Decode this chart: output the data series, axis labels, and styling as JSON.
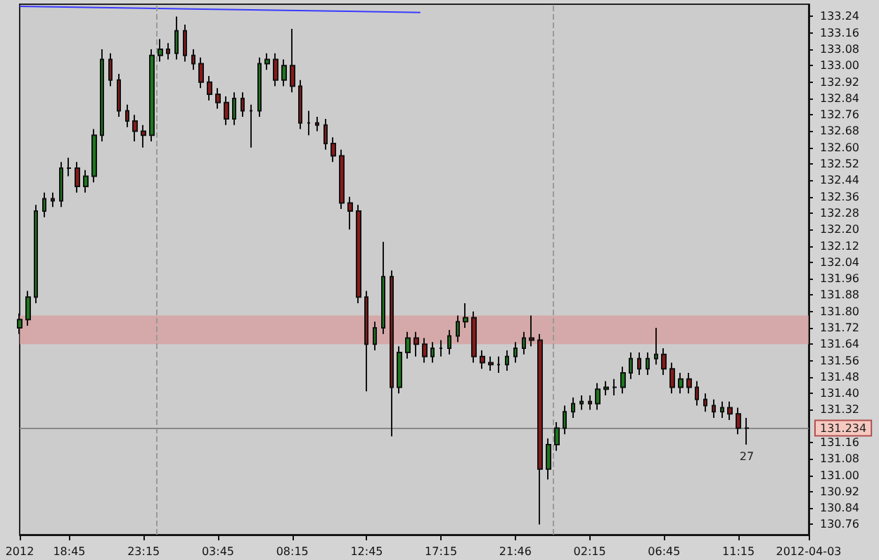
{
  "chart_data": {
    "type": "candlestick",
    "x": [
      "2012-04-01T15:45",
      "2012-04-01T16:15",
      "2012-04-01T16:45",
      "2012-04-01T17:15",
      "2012-04-01T17:45",
      "2012-04-01T18:15",
      "2012-04-01T18:45",
      "2012-04-01T19:15",
      "2012-04-01T19:45",
      "2012-04-01T20:15",
      "2012-04-01T20:45",
      "2012-04-01T21:15",
      "2012-04-01T21:45",
      "2012-04-01T22:15",
      "2012-04-01T22:45",
      "2012-04-01T23:15",
      "2012-04-01T23:45",
      "2012-04-02T00:15",
      "2012-04-02T00:45",
      "2012-04-02T01:15",
      "2012-04-02T01:45",
      "2012-04-02T02:15",
      "2012-04-02T02:45",
      "2012-04-02T03:15",
      "2012-04-02T03:45",
      "2012-04-02T04:15",
      "2012-04-02T04:45",
      "2012-04-02T05:15",
      "2012-04-02T05:45",
      "2012-04-02T06:15",
      "2012-04-02T06:45",
      "2012-04-02T07:15",
      "2012-04-02T07:45",
      "2012-04-02T08:15",
      "2012-04-02T08:45",
      "2012-04-02T09:15",
      "2012-04-02T09:45",
      "2012-04-02T10:15",
      "2012-04-02T10:45",
      "2012-04-02T11:15",
      "2012-04-02T11:45",
      "2012-04-02T12:15",
      "2012-04-02T12:45",
      "2012-04-02T13:15",
      "2012-04-02T13:45",
      "2012-04-02T14:15",
      "2012-04-02T14:45",
      "2012-04-02T15:15",
      "2012-04-02T15:45",
      "2012-04-02T16:15",
      "2012-04-02T16:45",
      "2012-04-02T17:15",
      "2012-04-02T17:45",
      "2012-04-02T18:15",
      "2012-04-02T18:45",
      "2012-04-02T19:15",
      "2012-04-02T19:45",
      "2012-04-02T20:15",
      "2012-04-02T20:45",
      "2012-04-02T21:15",
      "2012-04-02T21:45",
      "2012-04-02T22:15",
      "2012-04-02T22:45",
      "2012-04-02T23:15",
      "2012-04-02T23:45",
      "2012-04-03T00:15",
      "2012-04-03T00:45",
      "2012-04-03T01:15",
      "2012-04-03T01:45",
      "2012-04-03T02:15",
      "2012-04-03T02:45",
      "2012-04-03T03:15",
      "2012-04-03T03:45",
      "2012-04-03T04:15",
      "2012-04-03T04:45",
      "2012-04-03T05:15",
      "2012-04-03T05:45",
      "2012-04-03T06:15",
      "2012-04-03T06:45",
      "2012-04-03T07:15",
      "2012-04-03T07:45",
      "2012-04-03T08:15",
      "2012-04-03T08:45",
      "2012-04-03T09:15",
      "2012-04-03T09:45",
      "2012-04-03T10:15",
      "2012-04-03T10:45",
      "2012-04-03T11:15",
      "2012-04-03T11:45"
    ],
    "ohlc": [
      [
        131.72,
        131.79,
        131.69,
        131.76
      ],
      [
        131.76,
        131.9,
        131.73,
        131.87
      ],
      [
        131.87,
        132.32,
        131.84,
        132.29
      ],
      [
        132.29,
        132.38,
        132.26,
        132.35
      ],
      [
        132.35,
        132.38,
        132.31,
        132.34
      ],
      [
        132.34,
        132.53,
        132.31,
        132.5
      ],
      [
        132.5,
        132.55,
        132.46,
        132.5
      ],
      [
        132.5,
        132.53,
        132.38,
        132.41
      ],
      [
        132.41,
        132.49,
        132.38,
        132.46
      ],
      [
        132.46,
        132.69,
        132.43,
        132.66
      ],
      [
        132.66,
        133.08,
        132.63,
        133.03
      ],
      [
        133.03,
        133.06,
        132.9,
        132.93
      ],
      [
        132.93,
        132.96,
        132.75,
        132.78
      ],
      [
        132.78,
        132.81,
        132.7,
        132.73
      ],
      [
        132.73,
        132.76,
        132.63,
        132.68
      ],
      [
        132.68,
        132.71,
        132.6,
        132.66
      ],
      [
        132.66,
        133.08,
        132.63,
        133.05
      ],
      [
        133.05,
        133.13,
        133.02,
        133.08
      ],
      [
        133.08,
        133.11,
        133.03,
        133.06
      ],
      [
        133.06,
        133.24,
        133.03,
        133.17
      ],
      [
        133.17,
        133.2,
        133.02,
        133.05
      ],
      [
        133.05,
        133.08,
        132.98,
        133.01
      ],
      [
        133.01,
        133.04,
        132.89,
        132.92
      ],
      [
        132.92,
        132.95,
        132.83,
        132.86
      ],
      [
        132.86,
        132.89,
        132.79,
        132.82
      ],
      [
        132.82,
        132.85,
        132.71,
        132.74
      ],
      [
        132.74,
        132.87,
        132.71,
        132.84
      ],
      [
        132.84,
        132.87,
        132.75,
        132.78
      ],
      [
        132.78,
        132.81,
        132.6,
        132.78
      ],
      [
        132.78,
        133.04,
        132.75,
        133.01
      ],
      [
        133.01,
        133.06,
        132.98,
        133.03
      ],
      [
        133.03,
        133.06,
        132.9,
        132.93
      ],
      [
        132.93,
        133.03,
        132.9,
        133.0
      ],
      [
        133.0,
        133.18,
        132.87,
        132.9
      ],
      [
        132.9,
        132.93,
        132.69,
        132.72
      ],
      [
        132.72,
        132.78,
        132.66,
        132.72
      ],
      [
        132.72,
        132.75,
        132.68,
        132.71
      ],
      [
        132.71,
        132.74,
        132.59,
        132.62
      ],
      [
        132.62,
        132.65,
        132.53,
        132.56
      ],
      [
        132.56,
        132.59,
        132.3,
        132.33
      ],
      [
        132.33,
        132.36,
        132.2,
        132.29
      ],
      [
        132.29,
        132.32,
        131.84,
        131.87
      ],
      [
        131.87,
        131.9,
        131.41,
        131.64
      ],
      [
        131.64,
        131.75,
        131.61,
        131.72
      ],
      [
        131.72,
        132.14,
        131.69,
        131.97
      ],
      [
        131.97,
        132.0,
        131.19,
        131.43
      ],
      [
        131.43,
        131.63,
        131.4,
        131.6
      ],
      [
        131.6,
        131.7,
        131.57,
        131.67
      ],
      [
        131.67,
        131.7,
        131.58,
        131.64
      ],
      [
        131.64,
        131.67,
        131.55,
        131.58
      ],
      [
        131.58,
        131.65,
        131.55,
        131.62
      ],
      [
        131.62,
        131.66,
        131.58,
        131.62
      ],
      [
        131.62,
        131.71,
        131.59,
        131.68
      ],
      [
        131.68,
        131.78,
        131.65,
        131.75
      ],
      [
        131.75,
        131.84,
        131.72,
        131.77
      ],
      [
        131.77,
        131.8,
        131.55,
        131.58
      ],
      [
        131.58,
        131.61,
        131.52,
        131.55
      ],
      [
        131.55,
        131.58,
        131.51,
        131.54
      ],
      [
        131.54,
        131.58,
        131.5,
        131.54
      ],
      [
        131.54,
        131.61,
        131.51,
        131.58
      ],
      [
        131.58,
        131.65,
        131.55,
        131.62
      ],
      [
        131.62,
        131.7,
        131.59,
        131.67
      ],
      [
        131.67,
        131.78,
        131.63,
        131.66
      ],
      [
        131.66,
        131.69,
        130.76,
        131.03
      ],
      [
        131.03,
        131.18,
        130.98,
        131.15
      ],
      [
        131.15,
        131.26,
        131.12,
        131.23
      ],
      [
        131.23,
        131.34,
        131.2,
        131.31
      ],
      [
        131.31,
        131.38,
        131.28,
        131.35
      ],
      [
        131.35,
        131.39,
        131.32,
        131.36
      ],
      [
        131.36,
        131.39,
        131.32,
        131.35
      ],
      [
        131.35,
        131.45,
        131.32,
        131.42
      ],
      [
        131.42,
        131.46,
        131.39,
        131.43
      ],
      [
        131.43,
        131.47,
        131.39,
        131.43
      ],
      [
        131.43,
        131.53,
        131.4,
        131.5
      ],
      [
        131.5,
        131.6,
        131.47,
        131.57
      ],
      [
        131.57,
        131.6,
        131.49,
        131.52
      ],
      [
        131.52,
        131.6,
        131.49,
        131.57
      ],
      [
        131.57,
        131.72,
        131.54,
        131.59
      ],
      [
        131.59,
        131.62,
        131.49,
        131.52
      ],
      [
        131.52,
        131.55,
        131.4,
        131.43
      ],
      [
        131.43,
        131.5,
        131.4,
        131.47
      ],
      [
        131.47,
        131.5,
        131.4,
        131.43
      ],
      [
        131.43,
        131.46,
        131.34,
        131.37
      ],
      [
        131.37,
        131.4,
        131.31,
        131.34
      ],
      [
        131.34,
        131.37,
        131.28,
        131.31
      ],
      [
        131.31,
        131.36,
        131.28,
        131.33
      ],
      [
        131.33,
        131.36,
        131.27,
        131.3
      ],
      [
        131.3,
        131.33,
        131.2,
        131.23
      ],
      [
        131.23,
        131.28,
        131.15,
        131.23
      ]
    ],
    "series": [
      {
        "type": "line",
        "color": "#3a3aff",
        "x": [
          "2012-04-01T15:45",
          "2012-04-02T16:00"
        ],
        "values": [
          133.29,
          133.26
        ]
      }
    ],
    "xlim": [
      "2012-04-01T15:45",
      "2012-04-03T15:30"
    ],
    "xticks": [
      {
        "value": "2012-04-01T15:45",
        "label": "2012"
      },
      {
        "value": "2012-04-01T18:45",
        "label": "18:45"
      },
      {
        "value": "2012-04-01T23:15",
        "label": "23:15"
      },
      {
        "value": "2012-04-02T03:45",
        "label": "03:45"
      },
      {
        "value": "2012-04-02T08:15",
        "label": "08:15"
      },
      {
        "value": "2012-04-02T12:45",
        "label": "12:45"
      },
      {
        "value": "2012-04-02T17:15",
        "label": "17:15"
      },
      {
        "value": "2012-04-02T21:45",
        "label": "21:46"
      },
      {
        "value": "2012-04-03T02:15",
        "label": "02:15"
      },
      {
        "value": "2012-04-03T06:45",
        "label": "06:45"
      },
      {
        "value": "2012-04-03T11:15",
        "label": "11:15"
      },
      {
        "value": "2012-04-03T15:30",
        "label": "2012-04-03"
      }
    ],
    "ylim": [
      130.71,
      133.3
    ],
    "yticks": [
      130.76,
      130.84,
      130.92,
      {
        "value": 131,
        "label": "131.00"
      },
      131.08,
      131.16,
      131.32,
      {
        "value": 131.4,
        "label": "131.40"
      },
      131.48,
      131.56,
      131.64,
      131.72,
      {
        "value": 131.8,
        "label": "131.80"
      },
      131.88,
      131.96,
      132.04,
      132.12,
      {
        "value": 132.2,
        "label": "132.20"
      },
      132.28,
      132.36,
      132.44,
      132.52,
      {
        "value": 132.6,
        "label": "132.60"
      },
      132.68,
      132.76,
      132.84,
      132.92,
      {
        "value": 133,
        "label": "133.00"
      },
      133.08,
      133.16,
      133.24
    ],
    "ref_lines": [
      {
        "axis": "x",
        "value": "2012-04-02",
        "color": "#999999",
        "line_style": "dashed"
      },
      {
        "axis": "x",
        "value": "2012-04-03",
        "color": "#999999",
        "line_style": "dashed"
      },
      {
        "axis": "y",
        "value": 131.234,
        "label": "131.234",
        "color": "#888888",
        "line_style": "solid"
      }
    ],
    "bands": [
      {
        "axis": "y",
        "from": 131.64,
        "to": 131.78,
        "color": "#d99a9a"
      }
    ],
    "annotations": [
      {
        "text": "27",
        "x": "2012-04-03T11:45",
        "y": 131.12
      }
    ],
    "grid": false
  }
}
